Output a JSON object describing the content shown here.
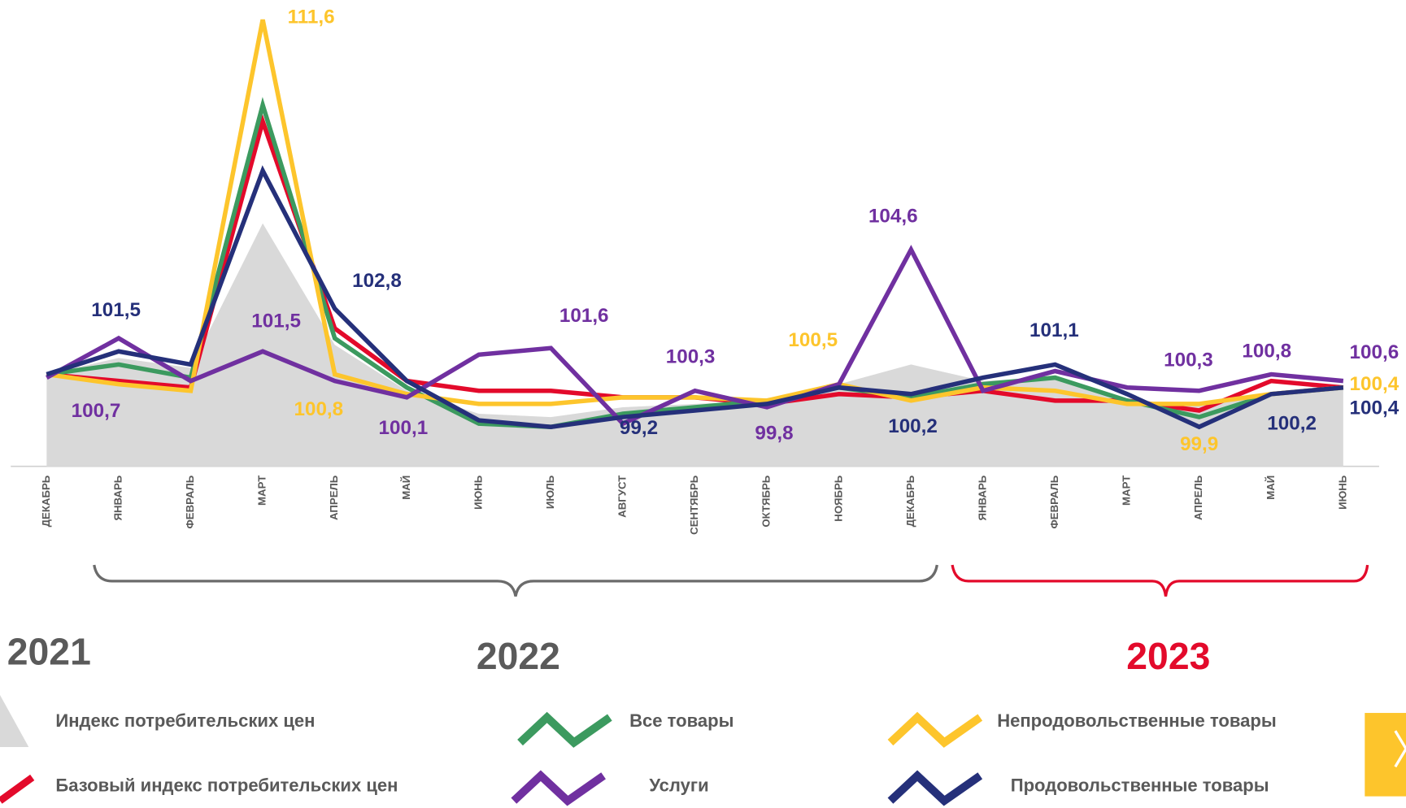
{
  "chart_data": {
    "type": "line",
    "categories": [
      "ДЕКАБРЬ",
      "ЯНВАРЬ",
      "ФЕВРАЛЬ",
      "МАРТ",
      "АПРЕЛЬ",
      "МАЙ",
      "ИЮНЬ",
      "ИЮЛЬ",
      "АВГУСТ",
      "СЕНТЯБРЬ",
      "ОКТЯБРЬ",
      "НОЯБРЬ",
      "ДЕКАБРЬ",
      "ЯНВАРЬ",
      "ФЕВРАЛЬ",
      "МАРТ",
      "АПРЕЛЬ",
      "МАЙ",
      "ИЮНЬ"
    ],
    "ylim": [
      98,
      112.2
    ],
    "years": [
      {
        "label": "2021",
        "color": "#5a5a5a"
      },
      {
        "label": "2022",
        "color": "#5a5a5a"
      },
      {
        "label": "2023",
        "color": "#e30a2b"
      }
    ],
    "series": [
      {
        "name": "Индекс потребительских  цен",
        "color": "#d9d9d9",
        "area": true,
        "values": [
          100.8,
          101.3,
          101.0,
          105.4,
          101.7,
          100.3,
          99.6,
          99.5,
          99.8,
          99.9,
          100.0,
          100.5,
          101.1,
          100.6,
          100.7,
          100.0,
          99.9,
          100.2,
          100.4
        ],
        "value_labels": [
          null,
          null,
          null,
          null,
          null,
          null,
          null,
          null,
          null,
          null,
          null,
          null,
          null,
          null,
          null,
          null,
          null,
          null,
          null
        ]
      },
      {
        "name": "Базовый индекс потребительских цен",
        "color": "#e30a2b",
        "values": [
          100.8,
          100.6,
          100.4,
          108.5,
          102.2,
          100.6,
          100.3,
          100.3,
          100.1,
          100.1,
          99.9,
          100.2,
          100.1,
          100.3,
          100.0,
          100.0,
          99.7,
          100.6,
          100.4
        ],
        "value_labels": [
          null,
          null,
          null,
          null,
          null,
          null,
          null,
          null,
          null,
          null,
          null,
          null,
          null,
          null,
          null,
          null,
          null,
          null,
          null
        ]
      },
      {
        "name": "Все товары",
        "color": "#3c9a5f",
        "values": [
          100.8,
          101.1,
          100.7,
          109.0,
          101.9,
          100.4,
          99.3,
          99.2,
          99.6,
          99.8,
          100.0,
          100.4,
          100.1,
          100.5,
          100.7,
          100.0,
          99.5,
          100.2,
          100.4
        ],
        "value_labels": [
          null,
          null,
          null,
          null,
          null,
          null,
          null,
          null,
          null,
          null,
          null,
          null,
          null,
          null,
          null,
          null,
          null,
          null,
          null
        ]
      },
      {
        "name": "Непродовольственные товары",
        "color": "#fdc52c",
        "values": [
          100.8,
          100.5,
          100.3,
          111.6,
          100.8,
          100.2,
          99.9,
          99.9,
          100.1,
          100.1,
          100.0,
          100.5,
          100.0,
          100.4,
          100.3,
          99.9,
          99.9,
          100.2,
          100.4
        ],
        "value_labels": [
          null,
          null,
          null,
          "111,6",
          "100,8",
          null,
          null,
          null,
          null,
          null,
          null,
          "100,5",
          null,
          null,
          null,
          null,
          "99,9",
          null,
          "100,4"
        ]
      },
      {
        "name": "Услуги",
        "color": "#7030a0",
        "values": [
          100.7,
          101.9,
          100.6,
          101.5,
          100.6,
          100.1,
          101.4,
          101.6,
          99.3,
          100.3,
          99.8,
          100.5,
          104.6,
          100.3,
          100.9,
          100.4,
          100.3,
          100.8,
          100.6
        ],
        "value_labels": [
          "100,7",
          null,
          null,
          "101,5",
          null,
          "100,1",
          null,
          "101,6",
          null,
          "100,3",
          "99,8",
          null,
          "104,6",
          null,
          null,
          null,
          "100,3",
          "100,8",
          "100,6"
        ]
      },
      {
        "name": "Продовольственные товары",
        "color": "#25307a",
        "values": [
          100.8,
          101.5,
          101.1,
          107.0,
          102.8,
          100.6,
          99.4,
          99.2,
          99.5,
          99.7,
          99.9,
          100.4,
          100.2,
          100.7,
          101.1,
          100.2,
          99.2,
          100.2,
          100.4
        ],
        "value_labels": [
          null,
          "101,5",
          null,
          null,
          "102,8",
          null,
          null,
          "99,2",
          null,
          null,
          null,
          null,
          "100,2",
          null,
          "101,1",
          null,
          null,
          "100,2",
          "100,4"
        ]
      }
    ]
  }
}
